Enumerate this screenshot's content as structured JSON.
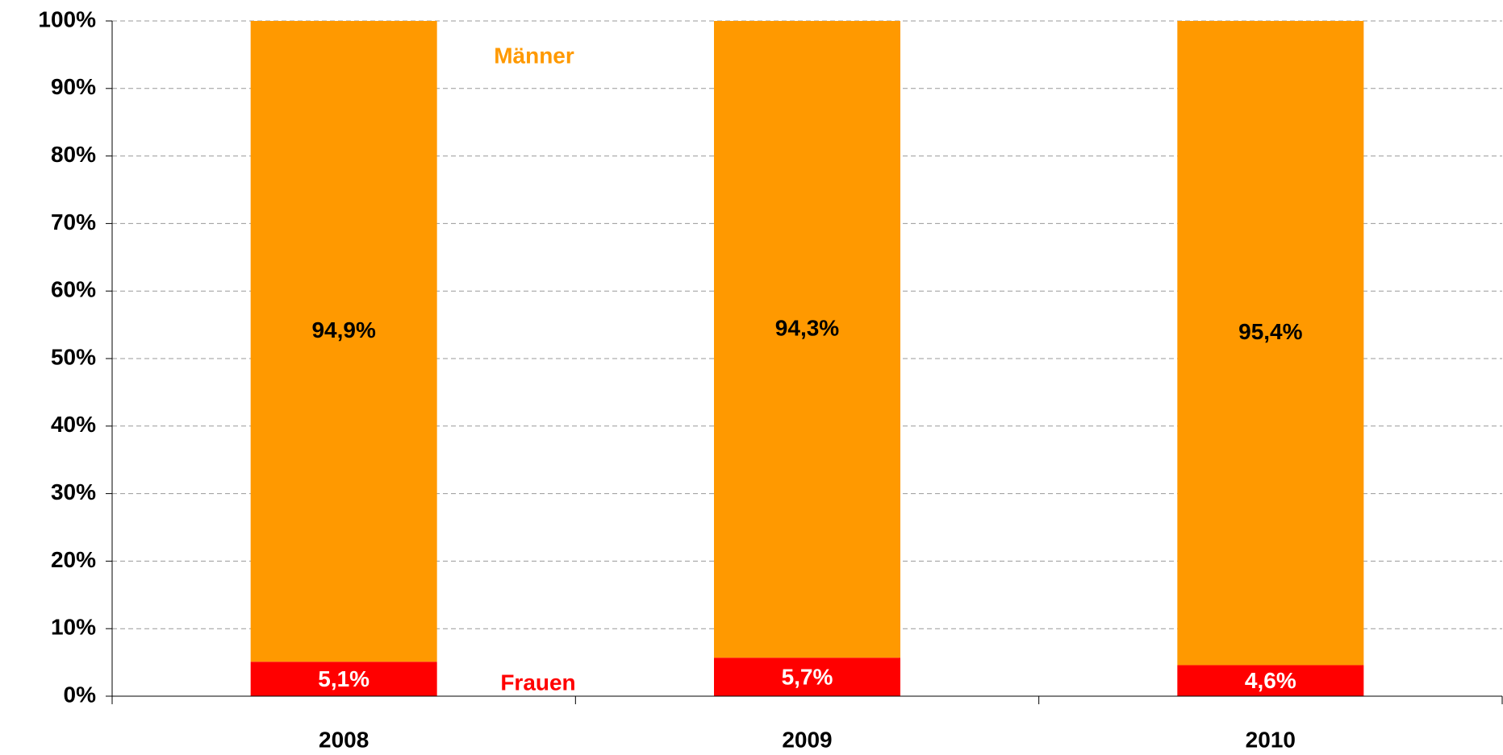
{
  "chart_data": {
    "type": "stacked_bar",
    "categories": [
      "2008",
      "2009",
      "2010"
    ],
    "series": [
      {
        "name": "Frauen",
        "color": "#ff0000",
        "values": [
          5.1,
          5.7,
          4.6
        ],
        "value_labels": [
          "5,1%",
          "5,7%",
          "4,6%"
        ]
      },
      {
        "name": "Männer",
        "color": "#ff9900",
        "values": [
          94.9,
          94.3,
          95.4
        ],
        "value_labels": [
          "94,9%",
          "94,3%",
          "95,4%"
        ]
      }
    ],
    "ylim": [
      0,
      100
    ],
    "yticks": [
      {
        "value": 0,
        "label": "0%"
      },
      {
        "value": 10,
        "label": "10%"
      },
      {
        "value": 20,
        "label": "20%"
      },
      {
        "value": 30,
        "label": "30%"
      },
      {
        "value": 40,
        "label": "40%"
      },
      {
        "value": 50,
        "label": "50%"
      },
      {
        "value": 60,
        "label": "60%"
      },
      {
        "value": 70,
        "label": "70%"
      },
      {
        "value": 80,
        "label": "80%"
      },
      {
        "value": 90,
        "label": "90%"
      },
      {
        "value": 100,
        "label": "100%"
      }
    ],
    "grid": true
  }
}
